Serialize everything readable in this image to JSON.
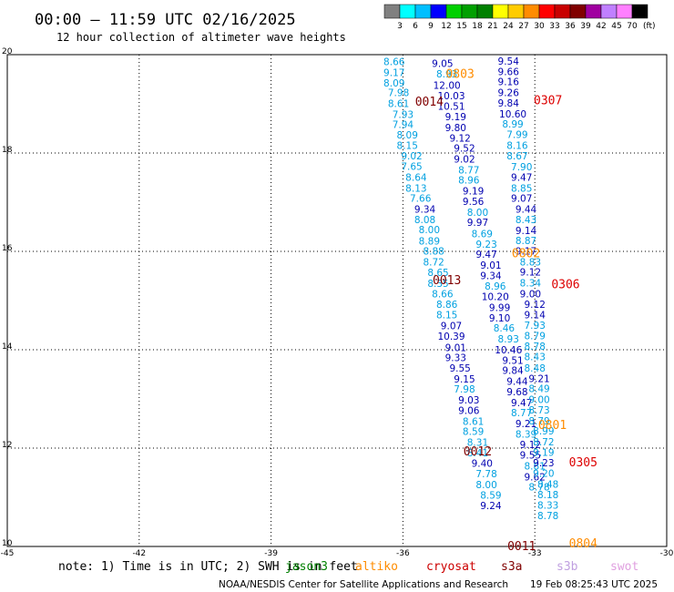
{
  "header": {
    "title": "00:00 – 11:59 UTC 02/16/2025",
    "subtitle": "12 hour collection of altimeter wave heights"
  },
  "legend": {
    "unit": "(ft)",
    "ticks": [
      "3",
      "6",
      "9",
      "12",
      "15",
      "18",
      "21",
      "24",
      "27",
      "30",
      "33",
      "36",
      "39",
      "42",
      "45",
      "70"
    ],
    "colors": [
      "#808080",
      "#00ffff",
      "#00bfff",
      "#0000ff",
      "#00d000",
      "#00a000",
      "#008000",
      "#ffff00",
      "#ffcc00",
      "#ff8c00",
      "#ff0000",
      "#c80000",
      "#800000",
      "#a000a0",
      "#c080ff",
      "#ff80ff",
      "#000000"
    ]
  },
  "footer": {
    "note": "note: 1) Time is in UTC; 2) SWH is in feet",
    "satellites": [
      {
        "name": "jason3",
        "color": "#008000"
      },
      {
        "name": "altiko",
        "color": "#ff8c00"
      },
      {
        "name": "cryosat",
        "color": "#cc0000"
      },
      {
        "name": "s3a",
        "color": "#800000"
      },
      {
        "name": "s3b",
        "color": "#c0a0e0"
      },
      {
        "name": "swot",
        "color": "#e0a0e0"
      }
    ],
    "credit": "NOAA/NESDIS Center for Satellite Applications and Research",
    "timestamp": "19 Feb 08:25:43 UTC 2025"
  },
  "chart_data": {
    "type": "scatter",
    "xlim": [
      -45,
      -30
    ],
    "ylim": [
      10,
      20
    ],
    "xticks": [
      "-45",
      "-42",
      "-39",
      "-36",
      "-33",
      "-30"
    ],
    "yticks": [
      "10",
      "12",
      "14",
      "16",
      "18",
      "20"
    ],
    "grid": true,
    "colors": {
      "c": "#00a0e0",
      "b": "#0000b0",
      "o": "#ff8c00",
      "r": "#dd0000",
      "m": "#800000"
    },
    "pass_labels": [
      {
        "text": "0803",
        "x": -34.7,
        "y": 19.62,
        "c": "o"
      },
      {
        "text": "0014",
        "x": -35.4,
        "y": 19.06,
        "c": "m"
      },
      {
        "text": "0307",
        "x": -32.7,
        "y": 19.08,
        "c": "r"
      },
      {
        "text": "0802",
        "x": -33.2,
        "y": 15.97,
        "c": "o"
      },
      {
        "text": "0013",
        "x": -35.0,
        "y": 15.43,
        "c": "m"
      },
      {
        "text": "0306",
        "x": -32.3,
        "y": 15.34,
        "c": "r"
      },
      {
        "text": "0801",
        "x": -32.6,
        "y": 12.48,
        "c": "o"
      },
      {
        "text": "0012",
        "x": -34.3,
        "y": 11.94,
        "c": "m"
      },
      {
        "text": "0305",
        "x": -31.9,
        "y": 11.72,
        "c": "r"
      },
      {
        "text": "0011",
        "x": -33.3,
        "y": 10.02,
        "c": "m"
      },
      {
        "text": "0804",
        "x": -31.9,
        "y": 10.07,
        "c": "o"
      }
    ],
    "series": [
      {
        "points": [
          [
            "8.66",
            -36.2,
            19.86,
            "c"
          ],
          [
            "9.17",
            -36.2,
            19.64,
            "c"
          ],
          [
            "8.09",
            -36.2,
            19.43,
            "c"
          ],
          [
            "7.98",
            -36.1,
            19.23,
            "c"
          ],
          [
            "8.61",
            -36.1,
            19.01,
            "c"
          ],
          [
            "7.93",
            -36.0,
            18.79,
            "c"
          ],
          [
            "7.94",
            -36.0,
            18.58,
            "c"
          ],
          [
            "8.09",
            -35.9,
            18.37,
            "c"
          ],
          [
            "8.15",
            -35.9,
            18.16,
            "c"
          ],
          [
            "9.02",
            -35.8,
            17.94,
            "c"
          ],
          [
            "7.65",
            -35.8,
            17.73,
            "c"
          ],
          [
            "8.64",
            -35.7,
            17.51,
            "c"
          ],
          [
            "8.13",
            -35.7,
            17.29,
            "c"
          ],
          [
            "7.66",
            -35.6,
            17.08,
            "c"
          ],
          [
            "9.34",
            -35.5,
            16.86,
            "b"
          ],
          [
            "8.08",
            -35.5,
            16.65,
            "c"
          ],
          [
            "8.00",
            -35.4,
            16.44,
            "c"
          ],
          [
            "8.89",
            -35.4,
            16.21,
            "c"
          ],
          [
            "8.88",
            -35.3,
            16.01,
            "c"
          ],
          [
            "8.72",
            -35.3,
            15.79,
            "c"
          ],
          [
            "8.65",
            -35.2,
            15.57,
            "c"
          ],
          [
            "8.35",
            -35.2,
            15.35,
            "c"
          ],
          [
            "8.66",
            -35.1,
            15.14,
            "c"
          ],
          [
            "8.86",
            -35.0,
            14.93,
            "c"
          ],
          [
            "8.15",
            -35.0,
            14.71,
            "c"
          ],
          [
            "9.07",
            -34.9,
            14.49,
            "b"
          ],
          [
            "10.39",
            -34.9,
            14.28,
            "b"
          ],
          [
            "9.01",
            -34.8,
            14.05,
            "b"
          ],
          [
            "9.33",
            -34.8,
            13.84,
            "b"
          ],
          [
            "9.55",
            -34.7,
            13.63,
            "b"
          ],
          [
            "9.15",
            -34.6,
            13.41,
            "b"
          ],
          [
            "7.98",
            -34.6,
            13.2,
            "c"
          ],
          [
            "9.03",
            -34.5,
            12.98,
            "b"
          ],
          [
            "9.06",
            -34.5,
            12.77,
            "b"
          ],
          [
            "8.61",
            -34.4,
            12.55,
            "c"
          ],
          [
            "8.59",
            -34.4,
            12.34,
            "c"
          ],
          [
            "8.31",
            -34.3,
            12.12,
            "c"
          ],
          [
            "8.41",
            -34.3,
            11.91,
            "c"
          ],
          [
            "9.40",
            -34.2,
            11.69,
            "b"
          ],
          [
            "7.78",
            -34.1,
            11.48,
            "c"
          ],
          [
            "8.00",
            -34.1,
            11.26,
            "c"
          ],
          [
            "8.59",
            -34.0,
            11.05,
            "c"
          ],
          [
            "9.24",
            -34.0,
            10.83,
            "b"
          ]
        ]
      },
      {
        "points": [
          [
            "9.05",
            -35.1,
            19.82,
            "b"
          ],
          [
            "8.93",
            -35.0,
            19.61,
            "c"
          ],
          [
            "12.00",
            -35.0,
            19.38,
            "b"
          ],
          [
            "10.03",
            -34.9,
            19.17,
            "b"
          ],
          [
            "10.51",
            -34.9,
            18.95,
            "b"
          ],
          [
            "9.19",
            -34.8,
            18.74,
            "b"
          ],
          [
            "9.80",
            -34.8,
            18.52,
            "b"
          ],
          [
            "9.12",
            -34.7,
            18.31,
            "b"
          ],
          [
            "9.52",
            -34.6,
            18.1,
            "b"
          ],
          [
            "9.02",
            -34.6,
            17.88,
            "b"
          ],
          [
            "8.77",
            -34.5,
            17.66,
            "c"
          ],
          [
            "8.96",
            -34.5,
            17.45,
            "c"
          ],
          [
            "9.19",
            -34.4,
            17.23,
            "b"
          ],
          [
            "9.56",
            -34.4,
            17.02,
            "b"
          ],
          [
            "8.00",
            -34.3,
            16.8,
            "c"
          ],
          [
            "9.97",
            -34.3,
            16.59,
            "b"
          ],
          [
            "8.69",
            -34.2,
            16.36,
            "c"
          ],
          [
            "9.23",
            -34.1,
            16.15,
            "c"
          ],
          [
            "9.47",
            -34.1,
            15.94,
            "b"
          ],
          [
            "9.01",
            -34.0,
            15.72,
            "b"
          ],
          [
            "9.34",
            -34.0,
            15.51,
            "b"
          ],
          [
            "8.96",
            -33.9,
            15.3,
            "c"
          ],
          [
            "10.20",
            -33.9,
            15.08,
            "b"
          ],
          [
            "9.99",
            -33.8,
            14.86,
            "b"
          ],
          [
            "9.10",
            -33.8,
            14.65,
            "b"
          ],
          [
            "8.46",
            -33.7,
            14.44,
            "c"
          ],
          [
            "8.93",
            -33.6,
            14.22,
            "c"
          ],
          [
            "10.46",
            -33.6,
            14.0,
            "b"
          ],
          [
            "9.51",
            -33.5,
            13.79,
            "b"
          ],
          [
            "9.84",
            -33.5,
            13.58,
            "b"
          ],
          [
            "9.44",
            -33.4,
            13.36,
            "b"
          ],
          [
            "9.68",
            -33.4,
            13.15,
            "b"
          ],
          [
            "9.47",
            -33.3,
            12.93,
            "b"
          ],
          [
            "8.77",
            -33.3,
            12.72,
            "c"
          ],
          [
            "9.21",
            -33.2,
            12.5,
            "b"
          ],
          [
            "8.39",
            -33.2,
            12.29,
            "c"
          ],
          [
            "9.12",
            -33.1,
            12.07,
            "b"
          ],
          [
            "9.55",
            -33.1,
            11.86,
            "b"
          ],
          [
            "8.81",
            -33.0,
            11.64,
            "c"
          ],
          [
            "9.62",
            -33.0,
            11.42,
            "b"
          ],
          [
            "8.78",
            -32.9,
            11.21,
            "c"
          ]
        ]
      },
      {
        "points": [
          [
            "9.54",
            -33.6,
            19.87,
            "b"
          ],
          [
            "9.66",
            -33.6,
            19.66,
            "b"
          ],
          [
            "9.16",
            -33.6,
            19.45,
            "b"
          ],
          [
            "9.26",
            -33.6,
            19.23,
            "b"
          ],
          [
            "9.84",
            -33.6,
            19.02,
            "b"
          ],
          [
            "10.60",
            -33.5,
            18.8,
            "b"
          ],
          [
            "8.99",
            -33.5,
            18.59,
            "c"
          ],
          [
            "7.99",
            -33.4,
            18.38,
            "c"
          ],
          [
            "8.16",
            -33.4,
            18.16,
            "c"
          ],
          [
            "8.67",
            -33.4,
            17.94,
            "c"
          ],
          [
            "7.90",
            -33.3,
            17.72,
            "c"
          ],
          [
            "9.47",
            -33.3,
            17.51,
            "b"
          ],
          [
            "8.85",
            -33.3,
            17.29,
            "c"
          ],
          [
            "9.07",
            -33.3,
            17.08,
            "b"
          ],
          [
            "9.44",
            -33.2,
            16.86,
            "b"
          ],
          [
            "8.43",
            -33.2,
            16.65,
            "c"
          ],
          [
            "9.14",
            -33.2,
            16.43,
            "b"
          ],
          [
            "8.87",
            -33.2,
            16.22,
            "c"
          ],
          [
            "9.17",
            -33.2,
            16.01,
            "b"
          ],
          [
            "8.83",
            -33.1,
            15.79,
            "c"
          ],
          [
            "9.12",
            -33.1,
            15.58,
            "b"
          ],
          [
            "8.34",
            -33.1,
            15.36,
            "c"
          ],
          [
            "9.00",
            -33.1,
            15.14,
            "b"
          ],
          [
            "9.12",
            -33.0,
            14.93,
            "b"
          ],
          [
            "9.14",
            -33.0,
            14.71,
            "b"
          ],
          [
            "7.93",
            -33.0,
            14.5,
            "c"
          ],
          [
            "8.79",
            -33.0,
            14.29,
            "c"
          ],
          [
            "8.78",
            -33.0,
            14.07,
            "c"
          ],
          [
            "8.43",
            -33.0,
            13.86,
            "c"
          ],
          [
            "8.48",
            -33.0,
            13.63,
            "c"
          ],
          [
            "9.21",
            -32.9,
            13.42,
            "b"
          ],
          [
            "8.49",
            -32.9,
            13.21,
            "c"
          ],
          [
            "9.00",
            -32.9,
            12.99,
            "c"
          ],
          [
            "8.73",
            -32.9,
            12.78,
            "c"
          ],
          [
            "8.79",
            -32.9,
            12.56,
            "c"
          ],
          [
            "8.99",
            -32.8,
            12.35,
            "c"
          ],
          [
            "8.72",
            -32.8,
            12.13,
            "c"
          ],
          [
            "9.19",
            -32.8,
            11.92,
            "c"
          ],
          [
            "9.23",
            -32.8,
            11.7,
            "b"
          ],
          [
            "9.20",
            -32.8,
            11.49,
            "c"
          ],
          [
            "8.48",
            -32.7,
            11.27,
            "c"
          ],
          [
            "8.18",
            -32.7,
            11.06,
            "c"
          ],
          [
            "8.33",
            -32.7,
            10.84,
            "c"
          ],
          [
            "8.78",
            -32.7,
            10.63,
            "c"
          ]
        ]
      }
    ]
  }
}
